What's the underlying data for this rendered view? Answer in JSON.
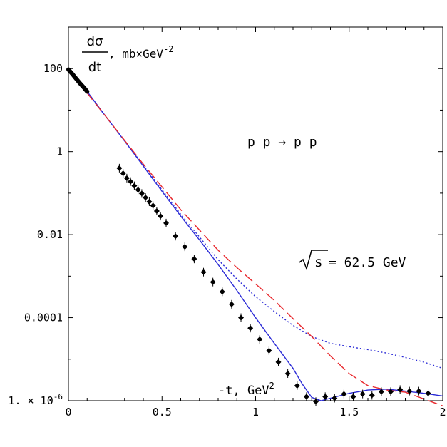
{
  "chart_data": {
    "type": "scatter",
    "title": "",
    "xlabel": "-t, GeV",
    "xlabel_sup": "2",
    "ylabel_fraction": {
      "numerator": "dσ",
      "denominator": "dt"
    },
    "ylabel_units": ", mb×GeV",
    "ylabel_units_sup": "-2",
    "reaction": "p p → p p",
    "energy_symbol": "s",
    "energy_text": " = 62.5 GeV",
    "x_scale": "linear",
    "y_scale": "log",
    "xlim": [
      0,
      2
    ],
    "ylim": [
      1e-06,
      1000
    ],
    "x_ticks": [
      {
        "value": 0,
        "label": "0"
      },
      {
        "value": 0.5,
        "label": "0.5"
      },
      {
        "value": 1,
        "label": "1"
      },
      {
        "value": 1.5,
        "label": "1.5"
      },
      {
        "value": 2,
        "label": "2"
      }
    ],
    "y_ticks": [
      {
        "value": 100,
        "label": "100"
      },
      {
        "value": 1,
        "label": "1"
      },
      {
        "value": 0.01,
        "label": "0.01"
      },
      {
        "value": 0.0001,
        "label": "0.0001"
      },
      {
        "value": 1e-06,
        "label": "1. × 10",
        "sup": "-6"
      }
    ],
    "grid": false,
    "legend": "none",
    "series": [
      {
        "kind": "points",
        "color": "#000000",
        "x": [
          0.272,
          0.292,
          0.312,
          0.332,
          0.352,
          0.372,
          0.392,
          0.412,
          0.432,
          0.452,
          0.472,
          0.492,
          0.522,
          0.572,
          0.622,
          0.672,
          0.722,
          0.772,
          0.822,
          0.872,
          0.922,
          0.972,
          1.022,
          1.072,
          1.122,
          1.172,
          1.222,
          1.272,
          1.322,
          1.372,
          1.422,
          1.472,
          1.522,
          1.572,
          1.622,
          1.672,
          1.722,
          1.772,
          1.822,
          1.872,
          1.922
        ],
        "y": [
          0.4,
          0.3,
          0.23,
          0.19,
          0.15,
          0.12,
          0.098,
          0.078,
          0.062,
          0.05,
          0.037,
          0.028,
          0.019,
          0.0092,
          0.0051,
          0.0026,
          0.00125,
          0.00072,
          0.00042,
          0.00021,
          0.0001,
          5.6e-05,
          3e-05,
          1.6e-05,
          8.5e-06,
          4.5e-06,
          2.3e-06,
          1.25e-06,
          9.5e-07,
          1.25e-06,
          1.15e-06,
          1.45e-06,
          1.25e-06,
          1.45e-06,
          1.35e-06,
          1.65e-06,
          1.65e-06,
          1.85e-06,
          1.7e-06,
          1.7e-06,
          1.5e-06
        ]
      },
      {
        "kind": "forward-peak",
        "color": "#000000",
        "x": [
          0.0,
          0.02,
          0.04,
          0.06,
          0.08,
          0.1
        ],
        "y": [
          95,
          75,
          58,
          45,
          36,
          28
        ]
      },
      {
        "kind": "line",
        "style": "solid",
        "color": "#2b2bd6",
        "x": [
          0.0,
          0.1,
          0.2,
          0.3,
          0.4,
          0.5,
          0.6,
          0.7,
          0.8,
          0.9,
          1.0,
          1.1,
          1.2,
          1.25,
          1.3,
          1.35,
          1.4,
          1.5,
          1.6,
          1.7,
          1.8,
          1.9,
          2.0
        ],
        "y": [
          95,
          28,
          7.0,
          1.8,
          0.45,
          0.11,
          0.028,
          0.0075,
          0.0019,
          0.00045,
          0.0001,
          2.4e-05,
          6e-06,
          2.5e-06,
          1.2e-06,
          1e-06,
          1.15e-06,
          1.5e-06,
          1.8e-06,
          1.9e-06,
          1.7e-06,
          1.5e-06,
          1.3e-06
        ]
      },
      {
        "kind": "line",
        "style": "dotted",
        "color": "#2b2bd6",
        "x": [
          0.0,
          0.2,
          0.4,
          0.6,
          0.8,
          0.9,
          1.0,
          1.1,
          1.2,
          1.3,
          1.4,
          1.5,
          1.6,
          1.7,
          1.8,
          1.9,
          2.0
        ],
        "y": [
          95,
          7.0,
          0.47,
          0.031,
          0.0025,
          0.00085,
          0.00032,
          0.00014,
          6.5e-05,
          3.5e-05,
          2.4e-05,
          2e-05,
          1.7e-05,
          1.4e-05,
          1.1e-05,
          8.5e-06,
          6e-06
        ]
      },
      {
        "kind": "line",
        "style": "dashed",
        "color": "#e8282d",
        "x": [
          0.0,
          0.2,
          0.4,
          0.6,
          0.8,
          0.9,
          1.0,
          1.1,
          1.2,
          1.3,
          1.4,
          1.5,
          1.6,
          1.7,
          1.8,
          1.9,
          2.0
        ],
        "y": [
          95,
          7.0,
          0.5,
          0.04,
          0.0042,
          0.0016,
          0.00065,
          0.00026,
          9.5e-05,
          3.5e-05,
          1.2e-05,
          4.5e-06,
          2.3e-06,
          1.8e-06,
          1.6e-06,
          1.1e-06,
          7.5e-07
        ]
      }
    ]
  }
}
